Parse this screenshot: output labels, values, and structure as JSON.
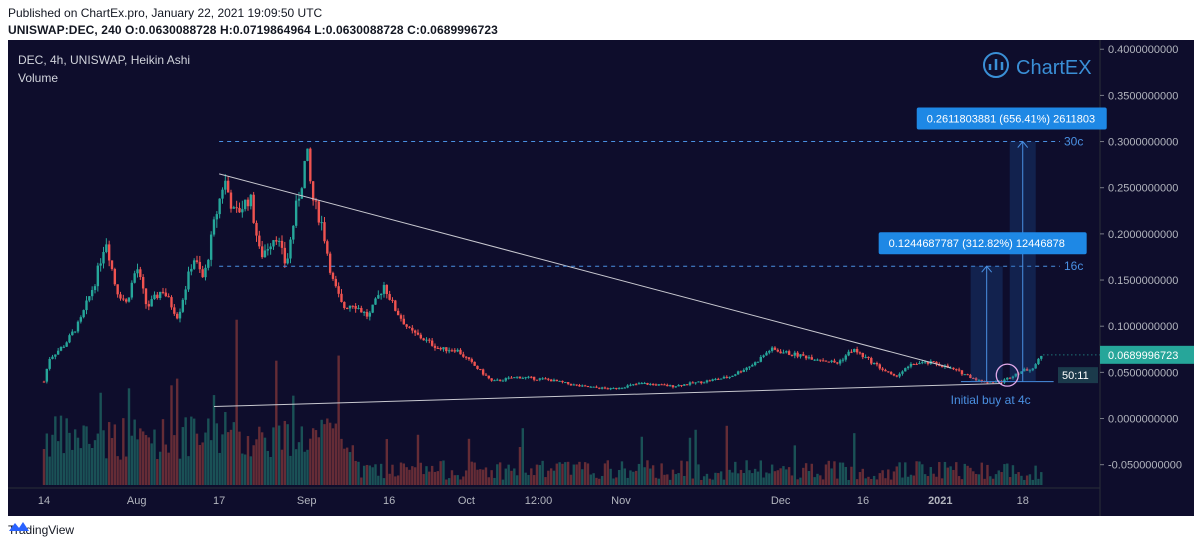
{
  "header": {
    "published": "Published on ChartEx.pro, January 22, 2021 19:09:50 UTC",
    "symbol_line": "UNISWAP:DEC, 240  O:0.0630088728  H:0.0719864964  L:0.0630088728  C:0.0689996723"
  },
  "legend": {
    "title": "DEC, 4h, UNISWAP, Heikin Ashi",
    "volume": "Volume"
  },
  "brand": {
    "name": "ChartEX",
    "color": "#3a8fd6"
  },
  "footer": {
    "label": "TradingView"
  },
  "colors": {
    "background": "#0e0d2c",
    "up": "#26a69a",
    "down": "#ef5350",
    "accent": "#1e88e5",
    "price_label": "#26a69a"
  },
  "chart_data": {
    "type": "candlestick",
    "style": "Heikin Ashi",
    "y_ticks": [
      "0.4000000000",
      "0.3500000000",
      "0.3000000000",
      "0.2500000000",
      "0.2000000000",
      "0.1500000000",
      "0.1000000000",
      "0.0500000000",
      "0.0000000000",
      "-0.0500000000"
    ],
    "y_tick_values": [
      0.4,
      0.35,
      0.3,
      0.25,
      0.2,
      0.15,
      0.1,
      0.05,
      0.0,
      -0.05
    ],
    "ylim": [
      -0.072,
      0.41
    ],
    "x_ticks": [
      "14",
      "Aug",
      "17",
      "Sep",
      "16",
      "Oct",
      "12:00",
      "Nov",
      "Dec",
      "16",
      "2021",
      "18"
    ],
    "x_tick_times": [
      0,
      18,
      34,
      51,
      67,
      82,
      96,
      112,
      143,
      159,
      174,
      190
    ],
    "xlim": [
      0,
      205
    ],
    "price_path": [
      {
        "t": 0,
        "v": 0.04
      },
      {
        "t": 1,
        "v": 0.065
      },
      {
        "t": 4,
        "v": 0.08
      },
      {
        "t": 7,
        "v": 0.105
      },
      {
        "t": 10,
        "v": 0.15
      },
      {
        "t": 12,
        "v": 0.195
      },
      {
        "t": 14,
        "v": 0.14
      },
      {
        "t": 16,
        "v": 0.125
      },
      {
        "t": 18,
        "v": 0.165
      },
      {
        "t": 20,
        "v": 0.12
      },
      {
        "t": 23,
        "v": 0.14
      },
      {
        "t": 26,
        "v": 0.11
      },
      {
        "t": 29,
        "v": 0.175
      },
      {
        "t": 31,
        "v": 0.15
      },
      {
        "t": 33,
        "v": 0.21
      },
      {
        "t": 35,
        "v": 0.26
      },
      {
        "t": 37,
        "v": 0.22
      },
      {
        "t": 40,
        "v": 0.24
      },
      {
        "t": 42,
        "v": 0.175
      },
      {
        "t": 45,
        "v": 0.2
      },
      {
        "t": 47,
        "v": 0.165
      },
      {
        "t": 49,
        "v": 0.23
      },
      {
        "t": 50,
        "v": 0.255
      },
      {
        "t": 51,
        "v": 0.29
      },
      {
        "t": 52,
        "v": 0.24
      },
      {
        "t": 54,
        "v": 0.21
      },
      {
        "t": 56,
        "v": 0.15
      },
      {
        "t": 58,
        "v": 0.12
      },
      {
        "t": 60,
        "v": 0.125
      },
      {
        "t": 63,
        "v": 0.11
      },
      {
        "t": 66,
        "v": 0.145
      },
      {
        "t": 68,
        "v": 0.12
      },
      {
        "t": 71,
        "v": 0.095
      },
      {
        "t": 74,
        "v": 0.085
      },
      {
        "t": 77,
        "v": 0.075
      },
      {
        "t": 80,
        "v": 0.075
      },
      {
        "t": 83,
        "v": 0.06
      },
      {
        "t": 87,
        "v": 0.04
      },
      {
        "t": 92,
        "v": 0.045
      },
      {
        "t": 98,
        "v": 0.042
      },
      {
        "t": 104,
        "v": 0.035
      },
      {
        "t": 110,
        "v": 0.032
      },
      {
        "t": 116,
        "v": 0.038
      },
      {
        "t": 122,
        "v": 0.035
      },
      {
        "t": 128,
        "v": 0.04
      },
      {
        "t": 133,
        "v": 0.045
      },
      {
        "t": 138,
        "v": 0.06
      },
      {
        "t": 141,
        "v": 0.075
      },
      {
        "t": 145,
        "v": 0.07
      },
      {
        "t": 150,
        "v": 0.065
      },
      {
        "t": 154,
        "v": 0.06
      },
      {
        "t": 157,
        "v": 0.075
      },
      {
        "t": 161,
        "v": 0.06
      },
      {
        "t": 165,
        "v": 0.045
      },
      {
        "t": 169,
        "v": 0.06
      },
      {
        "t": 173,
        "v": 0.06
      },
      {
        "t": 178,
        "v": 0.05
      },
      {
        "t": 182,
        "v": 0.04
      },
      {
        "t": 186,
        "v": 0.04
      },
      {
        "t": 189,
        "v": 0.05
      },
      {
        "t": 192,
        "v": 0.055
      },
      {
        "t": 194,
        "v": 0.07
      }
    ],
    "resistance_line": [
      {
        "t": 34,
        "v": 0.265
      },
      {
        "t": 176,
        "v": 0.055
      }
    ],
    "support_line": [
      {
        "t": 33,
        "v": 0.013
      },
      {
        "t": 186,
        "v": 0.038
      }
    ],
    "levels": [
      {
        "label": "30c",
        "value": 0.3,
        "t_start": 34
      },
      {
        "label": "16c",
        "value": 0.165,
        "t_start": 34
      }
    ],
    "measures": [
      {
        "label": "0.2611803881 (656.41%) 2611803",
        "from": 0.04,
        "to": 0.3,
        "t": 190
      },
      {
        "label": "0.1244687787 (312.82%) 12446878",
        "from": 0.04,
        "to": 0.165,
        "t": 183
      }
    ],
    "annotation": "Initial buy at 4c",
    "last_price": {
      "label": "0.0689996723",
      "value": 0.069
    },
    "countdown": {
      "label": "50:11",
      "value": 0.047
    }
  }
}
